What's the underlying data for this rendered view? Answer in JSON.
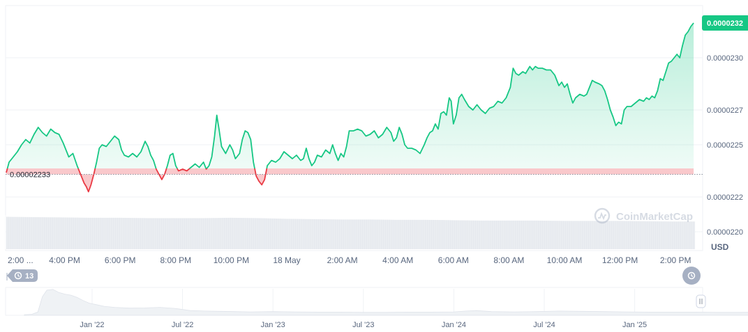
{
  "chart_data": {
    "type": "area",
    "currency": "USD",
    "baseline_label": "0.00002233",
    "baseline_value": 2.233e-05,
    "current_price_label": "0.0000232",
    "current_price_value": 2.32e-05,
    "watermark": "CoinMarketCap",
    "ylim": [
      2.19e-05,
      2.33e-05
    ],
    "y_ticks": [
      {
        "label": "0.0000230",
        "value": 2.3e-05
      },
      {
        "label": "0.0000227",
        "value": 2.27e-05
      },
      {
        "label": "0.0000225",
        "value": 2.25e-05
      },
      {
        "label": "0.0000222",
        "value": 2.22e-05
      },
      {
        "label": "0.0000220",
        "value": 2.2e-05
      }
    ],
    "x_ticks": [
      {
        "label": "2:00 ...",
        "h": 0.0
      },
      {
        "label": "4:00 PM",
        "h": 2.0
      },
      {
        "label": "6:00 PM",
        "h": 4.0
      },
      {
        "label": "8:00 PM",
        "h": 6.0
      },
      {
        "label": "10:00 PM",
        "h": 8.0
      },
      {
        "label": "18 May",
        "h": 10.0
      },
      {
        "label": "2:00 AM",
        "h": 12.0
      },
      {
        "label": "4:00 AM",
        "h": 14.0
      },
      {
        "label": "6:00 AM",
        "h": 16.0
      },
      {
        "label": "8:00 AM",
        "h": 18.0
      },
      {
        "label": "10:00 AM",
        "h": 20.0
      },
      {
        "label": "12:00 PM",
        "h": 22.0
      },
      {
        "label": "2:00 PM",
        "h": 24.0
      }
    ],
    "series": [
      {
        "unit_x": "hours after the first tick",
        "points": [
          [
            -0.1,
            2.234e-05
          ],
          [
            0.0,
            2.24e-05
          ],
          [
            0.15,
            2.243e-05
          ],
          [
            0.3,
            2.246e-05
          ],
          [
            0.45,
            2.25e-05
          ],
          [
            0.6,
            2.253e-05
          ],
          [
            0.75,
            2.251e-05
          ],
          [
            0.9,
            2.256e-05
          ],
          [
            1.05,
            2.26e-05
          ],
          [
            1.2,
            2.257e-05
          ],
          [
            1.35,
            2.255e-05
          ],
          [
            1.5,
            2.259e-05
          ],
          [
            1.65,
            2.257e-05
          ],
          [
            1.8,
            2.256e-05
          ],
          [
            1.95,
            2.251e-05
          ],
          [
            2.05,
            2.247e-05
          ],
          [
            2.15,
            2.243e-05
          ],
          [
            2.3,
            2.245e-05
          ],
          [
            2.45,
            2.238e-05
          ],
          [
            2.6,
            2.232e-05
          ],
          [
            2.7,
            2.228e-05
          ],
          [
            2.78,
            2.226e-05
          ],
          [
            2.86,
            2.223e-05
          ],
          [
            2.95,
            2.227e-05
          ],
          [
            3.05,
            2.233e-05
          ],
          [
            3.15,
            2.24e-05
          ],
          [
            3.25,
            2.248e-05
          ],
          [
            3.35,
            2.25e-05
          ],
          [
            3.5,
            2.249e-05
          ],
          [
            3.65,
            2.252e-05
          ],
          [
            3.8,
            2.255e-05
          ],
          [
            3.95,
            2.253e-05
          ],
          [
            4.05,
            2.247e-05
          ],
          [
            4.15,
            2.244e-05
          ],
          [
            4.3,
            2.243e-05
          ],
          [
            4.45,
            2.245e-05
          ],
          [
            4.6,
            2.243e-05
          ],
          [
            4.75,
            2.246e-05
          ],
          [
            4.9,
            2.252e-05
          ],
          [
            5.0,
            2.249e-05
          ],
          [
            5.1,
            2.244e-05
          ],
          [
            5.2,
            2.241e-05
          ],
          [
            5.3,
            2.236e-05
          ],
          [
            5.4,
            2.233e-05
          ],
          [
            5.5,
            2.23e-05
          ],
          [
            5.6,
            2.233e-05
          ],
          [
            5.7,
            2.238e-05
          ],
          [
            5.8,
            2.244e-05
          ],
          [
            5.9,
            2.245e-05
          ],
          [
            6.0,
            2.238e-05
          ],
          [
            6.1,
            2.235e-05
          ],
          [
            6.25,
            2.236e-05
          ],
          [
            6.4,
            2.235e-05
          ],
          [
            6.55,
            2.237e-05
          ],
          [
            6.7,
            2.239e-05
          ],
          [
            6.85,
            2.237e-05
          ],
          [
            7.0,
            2.24e-05
          ],
          [
            7.1,
            2.236e-05
          ],
          [
            7.2,
            2.238e-05
          ],
          [
            7.3,
            2.243e-05
          ],
          [
            7.4,
            2.255e-05
          ],
          [
            7.48,
            2.267e-05
          ],
          [
            7.56,
            2.259e-05
          ],
          [
            7.65,
            2.249e-05
          ],
          [
            7.8,
            2.245e-05
          ],
          [
            7.95,
            2.25e-05
          ],
          [
            8.05,
            2.247e-05
          ],
          [
            8.15,
            2.242e-05
          ],
          [
            8.3,
            2.245e-05
          ],
          [
            8.4,
            2.253e-05
          ],
          [
            8.5,
            2.258e-05
          ],
          [
            8.6,
            2.257e-05
          ],
          [
            8.7,
            2.253e-05
          ],
          [
            8.8,
            2.24e-05
          ],
          [
            8.9,
            2.232e-05
          ],
          [
            9.0,
            2.229e-05
          ],
          [
            9.1,
            2.227e-05
          ],
          [
            9.2,
            2.23e-05
          ],
          [
            9.3,
            2.238e-05
          ],
          [
            9.45,
            2.241e-05
          ],
          [
            9.6,
            2.24e-05
          ],
          [
            9.75,
            2.242e-05
          ],
          [
            9.9,
            2.246e-05
          ],
          [
            10.05,
            2.244e-05
          ],
          [
            10.2,
            2.242e-05
          ],
          [
            10.35,
            2.244e-05
          ],
          [
            10.5,
            2.241e-05
          ],
          [
            10.6,
            2.242e-05
          ],
          [
            10.7,
            2.248e-05
          ],
          [
            10.8,
            2.242e-05
          ],
          [
            10.9,
            2.238e-05
          ],
          [
            11.0,
            2.24e-05
          ],
          [
            11.1,
            2.244e-05
          ],
          [
            11.25,
            2.243e-05
          ],
          [
            11.4,
            2.247e-05
          ],
          [
            11.55,
            2.245e-05
          ],
          [
            11.65,
            2.25e-05
          ],
          [
            11.75,
            2.245e-05
          ],
          [
            11.85,
            2.241e-05
          ],
          [
            11.95,
            2.245e-05
          ],
          [
            12.05,
            2.243e-05
          ],
          [
            12.15,
            2.249e-05
          ],
          [
            12.25,
            2.258e-05
          ],
          [
            12.4,
            2.258e-05
          ],
          [
            12.55,
            2.259e-05
          ],
          [
            12.7,
            2.258e-05
          ],
          [
            12.85,
            2.255e-05
          ],
          [
            13.0,
            2.256e-05
          ],
          [
            13.15,
            2.258e-05
          ],
          [
            13.3,
            2.254e-05
          ],
          [
            13.45,
            2.256e-05
          ],
          [
            13.6,
            2.26e-05
          ],
          [
            13.75,
            2.257e-05
          ],
          [
            13.85,
            2.252e-05
          ],
          [
            13.95,
            2.254e-05
          ],
          [
            14.05,
            2.26e-05
          ],
          [
            14.15,
            2.256e-05
          ],
          [
            14.25,
            2.25e-05
          ],
          [
            14.35,
            2.248e-05
          ],
          [
            14.5,
            2.248e-05
          ],
          [
            14.65,
            2.247e-05
          ],
          [
            14.8,
            2.245e-05
          ],
          [
            14.95,
            2.25e-05
          ],
          [
            15.05,
            2.254e-05
          ],
          [
            15.15,
            2.257e-05
          ],
          [
            15.25,
            2.258e-05
          ],
          [
            15.35,
            2.262e-05
          ],
          [
            15.45,
            2.259e-05
          ],
          [
            15.55,
            2.268e-05
          ],
          [
            15.65,
            2.269e-05
          ],
          [
            15.75,
            2.267e-05
          ],
          [
            15.85,
            2.277e-05
          ],
          [
            15.92,
            2.275e-05
          ],
          [
            16.0,
            2.262e-05
          ],
          [
            16.1,
            2.267e-05
          ],
          [
            16.2,
            2.277e-05
          ],
          [
            16.3,
            2.279e-05
          ],
          [
            16.4,
            2.276e-05
          ],
          [
            16.55,
            2.272e-05
          ],
          [
            16.7,
            2.27e-05
          ],
          [
            16.85,
            2.273e-05
          ],
          [
            17.0,
            2.27e-05
          ],
          [
            17.15,
            2.268e-05
          ],
          [
            17.3,
            2.271e-05
          ],
          [
            17.45,
            2.272e-05
          ],
          [
            17.6,
            2.275e-05
          ],
          [
            17.75,
            2.274e-05
          ],
          [
            17.9,
            2.277e-05
          ],
          [
            18.05,
            2.283e-05
          ],
          [
            18.15,
            2.294e-05
          ],
          [
            18.25,
            2.291e-05
          ],
          [
            18.35,
            2.29e-05
          ],
          [
            18.5,
            2.292e-05
          ],
          [
            18.6,
            2.291e-05
          ],
          [
            18.75,
            2.295e-05
          ],
          [
            18.85,
            2.293e-05
          ],
          [
            18.95,
            2.295e-05
          ],
          [
            19.05,
            2.294e-05
          ],
          [
            19.2,
            2.294e-05
          ],
          [
            19.35,
            2.293e-05
          ],
          [
            19.5,
            2.293e-05
          ],
          [
            19.65,
            2.29e-05
          ],
          [
            19.8,
            2.284e-05
          ],
          [
            19.9,
            2.286e-05
          ],
          [
            20.0,
            2.283e-05
          ],
          [
            20.1,
            2.285e-05
          ],
          [
            20.2,
            2.279e-05
          ],
          [
            20.3,
            2.274e-05
          ],
          [
            20.4,
            2.277e-05
          ],
          [
            20.55,
            2.279e-05
          ],
          [
            20.7,
            2.278e-05
          ],
          [
            20.8,
            2.279e-05
          ],
          [
            20.9,
            2.283e-05
          ],
          [
            21.0,
            2.287e-05
          ],
          [
            21.1,
            2.286e-05
          ],
          [
            21.25,
            2.285e-05
          ],
          [
            21.35,
            2.284e-05
          ],
          [
            21.45,
            2.281e-05
          ],
          [
            21.55,
            2.276e-05
          ],
          [
            21.65,
            2.27e-05
          ],
          [
            21.75,
            2.266e-05
          ],
          [
            21.85,
            2.261e-05
          ],
          [
            21.95,
            2.263e-05
          ],
          [
            22.05,
            2.262e-05
          ],
          [
            22.15,
            2.27e-05
          ],
          [
            22.25,
            2.272e-05
          ],
          [
            22.4,
            2.272e-05
          ],
          [
            22.55,
            2.274e-05
          ],
          [
            22.7,
            2.276e-05
          ],
          [
            22.85,
            2.275e-05
          ],
          [
            22.95,
            2.277e-05
          ],
          [
            23.05,
            2.276e-05
          ],
          [
            23.15,
            2.278e-05
          ],
          [
            23.25,
            2.277e-05
          ],
          [
            23.35,
            2.281e-05
          ],
          [
            23.45,
            2.288e-05
          ],
          [
            23.55,
            2.287e-05
          ],
          [
            23.65,
            2.292e-05
          ],
          [
            23.75,
            2.297e-05
          ],
          [
            23.85,
            2.298e-05
          ],
          [
            23.95,
            2.3e-05
          ],
          [
            24.05,
            2.302e-05
          ],
          [
            24.15,
            2.3e-05
          ],
          [
            24.25,
            2.307e-05
          ],
          [
            24.35,
            2.313e-05
          ],
          [
            24.45,
            2.315e-05
          ],
          [
            24.55,
            2.318e-05
          ],
          [
            24.65,
            2.32e-05
          ]
        ]
      }
    ],
    "volume_ylim": [
      0,
      100
    ],
    "volume_points": [
      [
        -0.1,
        95
      ],
      [
        1,
        94
      ],
      [
        2,
        93
      ],
      [
        3,
        92
      ],
      [
        4,
        92
      ],
      [
        5,
        91
      ],
      [
        6,
        91
      ],
      [
        7,
        91
      ],
      [
        8,
        92
      ],
      [
        9,
        91
      ],
      [
        10,
        89
      ],
      [
        11,
        88
      ],
      [
        12,
        87
      ],
      [
        13,
        87
      ],
      [
        14,
        86
      ],
      [
        15,
        86
      ],
      [
        16,
        85
      ],
      [
        17,
        84
      ],
      [
        18,
        84
      ],
      [
        19,
        84
      ],
      [
        20,
        83
      ],
      [
        21,
        83
      ],
      [
        22,
        83
      ],
      [
        23,
        82
      ],
      [
        24,
        81
      ],
      [
        24.7,
        81
      ]
    ],
    "overview": {
      "x_ticks": [
        {
          "label": "Jan '22",
          "m": 0
        },
        {
          "label": "Jul '22",
          "m": 6
        },
        {
          "label": "Jan '23",
          "m": 12
        },
        {
          "label": "Jul '23",
          "m": 18
        },
        {
          "label": "Jan '24",
          "m": 24
        },
        {
          "label": "Jul '24",
          "m": 30
        },
        {
          "label": "Jan '25",
          "m": 36
        }
      ],
      "ylim": [
        0,
        100
      ],
      "points": [
        [
          -4.5,
          2
        ],
        [
          -4.0,
          4
        ],
        [
          -3.6,
          12
        ],
        [
          -3.3,
          70
        ],
        [
          -3.0,
          95
        ],
        [
          -2.6,
          98
        ],
        [
          -2.2,
          86
        ],
        [
          -1.8,
          80
        ],
        [
          -1.4,
          76
        ],
        [
          -1.0,
          68
        ],
        [
          -0.6,
          56
        ],
        [
          -0.2,
          46
        ],
        [
          0.3,
          40
        ],
        [
          0.8,
          34
        ],
        [
          1.5,
          30
        ],
        [
          2.5,
          27
        ],
        [
          3.5,
          28
        ],
        [
          4.5,
          30
        ],
        [
          5.5,
          26
        ],
        [
          6.5,
          18
        ],
        [
          7.5,
          16
        ],
        [
          8.5,
          15
        ],
        [
          9.5,
          14
        ],
        [
          10.5,
          13
        ],
        [
          12,
          14
        ],
        [
          13.5,
          13
        ],
        [
          15,
          12
        ],
        [
          16.5,
          12
        ],
        [
          18,
          11
        ],
        [
          19.5,
          11
        ],
        [
          21,
          12
        ],
        [
          22.5,
          12
        ],
        [
          24,
          13
        ],
        [
          24.8,
          16
        ],
        [
          25.5,
          18
        ],
        [
          26.5,
          14
        ],
        [
          28,
          13
        ],
        [
          29.5,
          14
        ],
        [
          31,
          16
        ],
        [
          32.5,
          15
        ],
        [
          34,
          14
        ],
        [
          35.5,
          13
        ],
        [
          37,
          12
        ],
        [
          38.5,
          12
        ],
        [
          40,
          12
        ],
        [
          41.5,
          11
        ],
        [
          43,
          11
        ],
        [
          45.3,
          12
        ]
      ]
    }
  },
  "controls": {
    "left_handle_count": "13"
  }
}
